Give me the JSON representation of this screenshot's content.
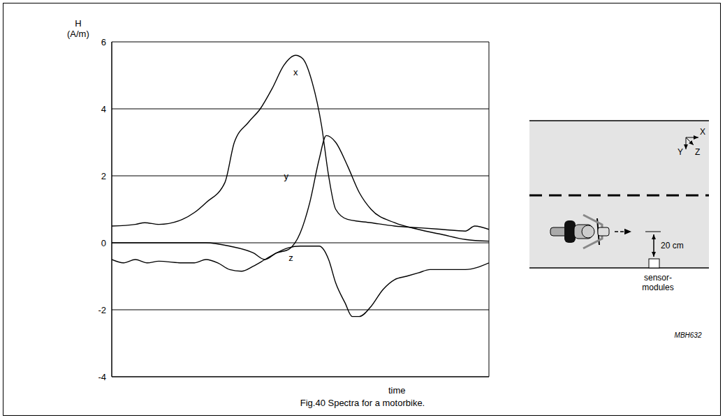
{
  "chart_data": {
    "type": "line",
    "ylabel": "H (A/m)",
    "xlabel": "time",
    "xlim": [
      0,
      16
    ],
    "xticks": [
      0,
      1,
      2,
      3,
      4,
      5,
      6,
      7,
      8,
      9,
      10,
      11,
      12,
      13,
      14,
      15,
      16
    ],
    "ylim": [
      -4,
      6
    ],
    "yticks": [
      -4,
      -2,
      0,
      2,
      4,
      6
    ],
    "grid": true,
    "tick_labels": "y",
    "series": [
      {
        "name": "x",
        "color": "#000000",
        "label_at": [
          7.8,
          5.1
        ],
        "x": [
          0,
          1,
          1.4,
          2,
          3,
          3.5,
          4,
          4.8,
          5.2,
          5.8,
          6.3,
          6.8,
          7.3,
          7.8,
          8.1,
          8.5,
          8.9,
          9.2,
          9.5,
          10,
          11,
          12,
          13,
          14,
          15,
          15.4,
          16
        ],
        "values": [
          0.5,
          0.55,
          0.6,
          0.55,
          0.7,
          0.9,
          1.2,
          1.8,
          3.0,
          3.6,
          4.0,
          4.6,
          5.3,
          5.6,
          5.5,
          4.8,
          3.5,
          2.0,
          1.0,
          0.7,
          0.6,
          0.5,
          0.45,
          0.4,
          0.35,
          0.5,
          0.4
        ]
      },
      {
        "name": "y",
        "color": "#000000",
        "label_at": [
          7.4,
          2.0
        ],
        "x": [
          0,
          2,
          4,
          5,
          6,
          6.5,
          7,
          7.5,
          8,
          8.4,
          8.8,
          9.1,
          9.5,
          10,
          10.5,
          11,
          12,
          13,
          14,
          15,
          16
        ],
        "values": [
          0,
          0,
          0,
          -0.1,
          -0.3,
          -0.5,
          -0.3,
          -0.2,
          0.3,
          1.2,
          2.5,
          3.2,
          3.0,
          2.3,
          1.5,
          1.0,
          0.6,
          0.4,
          0.25,
          0.1,
          0.05
        ]
      },
      {
        "name": "z",
        "color": "#000000",
        "label_at": [
          7.6,
          -0.45
        ],
        "x": [
          0,
          0.5,
          1,
          1.5,
          2,
          3,
          3.5,
          4,
          4.5,
          5,
          5.5,
          6,
          6.5,
          7,
          7.5,
          8,
          8.8,
          9.2,
          9.5,
          9.9,
          10.2,
          10.5,
          11,
          11.5,
          12,
          12.5,
          13,
          13.5,
          15,
          16
        ],
        "values": [
          -0.5,
          -0.6,
          -0.5,
          -0.6,
          -0.55,
          -0.6,
          -0.6,
          -0.5,
          -0.6,
          -0.8,
          -0.85,
          -0.7,
          -0.5,
          -0.3,
          -0.15,
          -0.1,
          -0.1,
          -0.5,
          -1.2,
          -1.8,
          -2.2,
          -2.2,
          -1.9,
          -1.4,
          -1.1,
          -1.0,
          -0.9,
          -0.8,
          -0.8,
          -0.6
        ]
      }
    ]
  },
  "caption": "Fig.40 Spectra for a motorbike.",
  "diagram": {
    "axes": [
      "X",
      "Y",
      "Z"
    ],
    "distance": "20 cm",
    "sensor_label": [
      "sensor-",
      "modules"
    ],
    "code": "MBH632"
  }
}
